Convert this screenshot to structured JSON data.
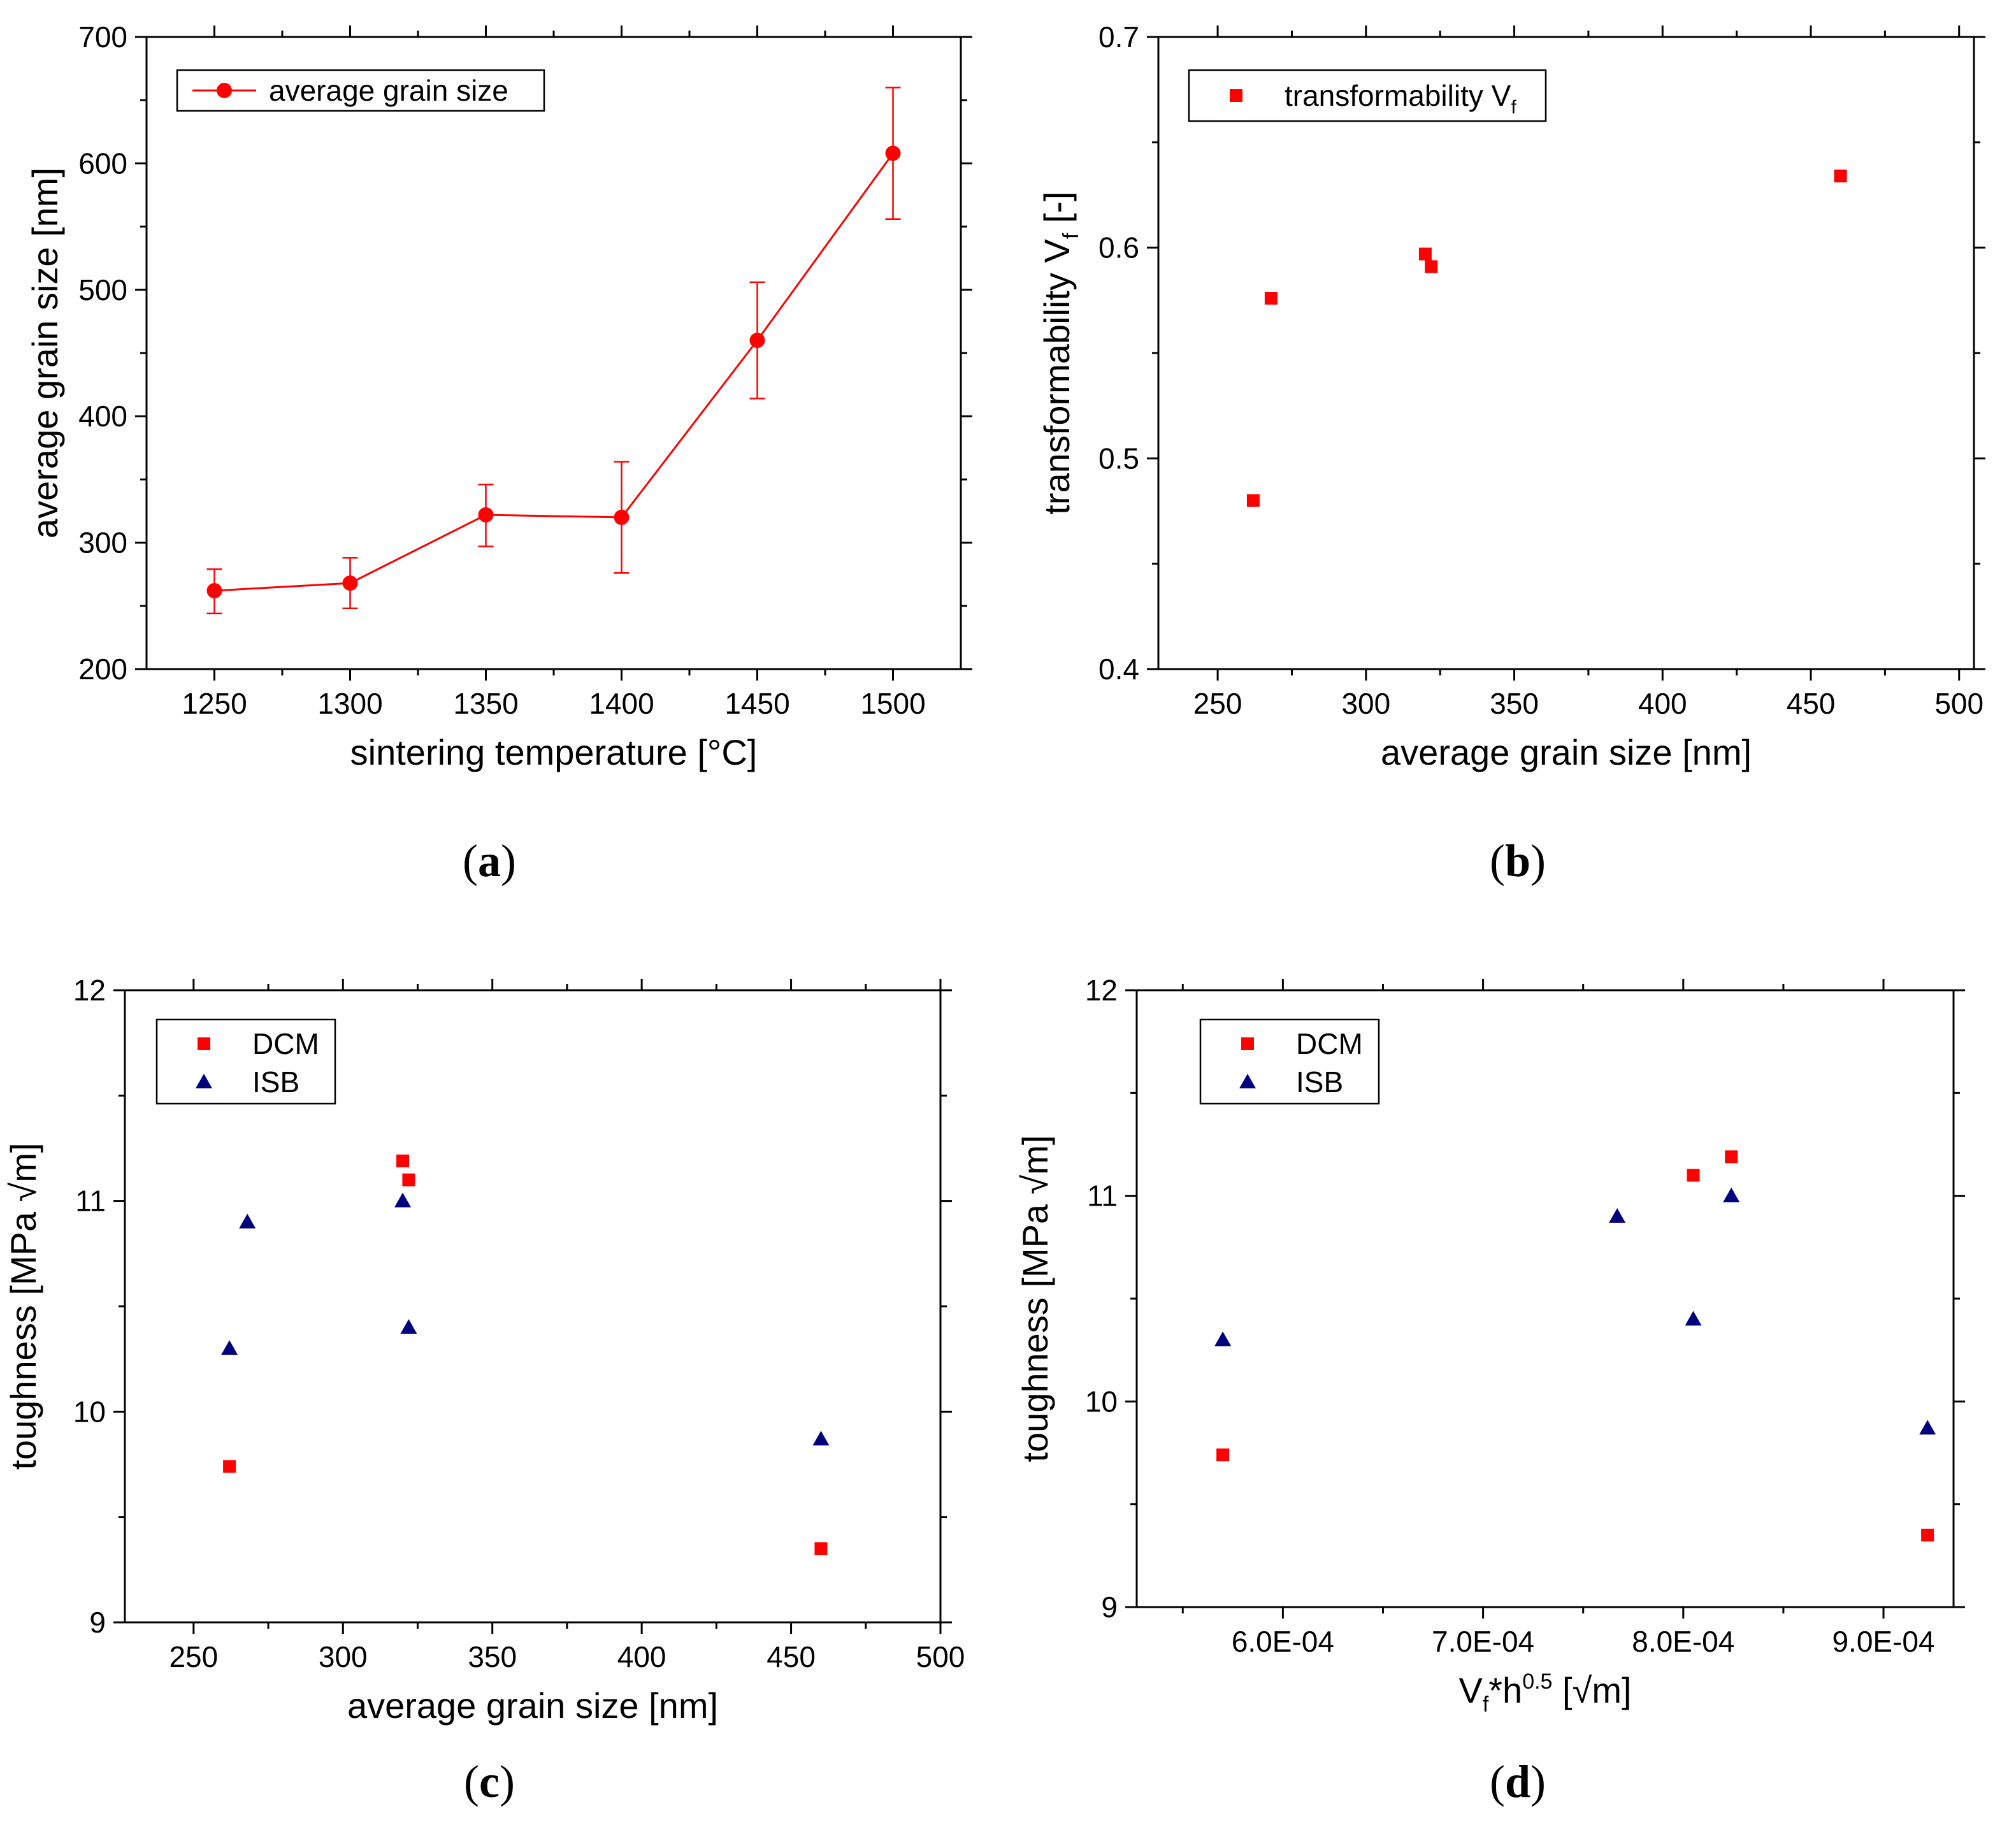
{
  "colors": {
    "dcm": "#ff0000",
    "isb": "#00007f",
    "axis": "#000000"
  },
  "chart_data": [
    {
      "id": "a",
      "type": "line",
      "panel_label": "a",
      "title": "",
      "xlabel": "sintering temperature [°C]",
      "ylabel": "average grain size [nm]",
      "xlim": [
        1225,
        1525
      ],
      "ylim": [
        200,
        700
      ],
      "xticks": [
        1250,
        1300,
        1350,
        1400,
        1450,
        1500
      ],
      "xtick_labels": [
        "1250",
        "1300",
        "1350",
        "1400",
        "1450",
        "1500"
      ],
      "yticks": [
        200,
        300,
        400,
        500,
        600,
        700
      ],
      "ytick_labels": [
        "200",
        "300",
        "400",
        "500",
        "600",
        "700"
      ],
      "legend_position": "top-left",
      "series": [
        {
          "name": "average grain size",
          "marker": "circle",
          "color": "#ff0000",
          "line": true,
          "x": [
            1250,
            1300,
            1350,
            1400,
            1450,
            1500
          ],
          "y": [
            262,
            268,
            322,
            320,
            460,
            608
          ],
          "err_low": [
            244,
            248,
            297,
            276,
            414,
            556
          ],
          "err_high": [
            279,
            288,
            346,
            364,
            506,
            660
          ]
        }
      ]
    },
    {
      "id": "b",
      "type": "scatter",
      "panel_label": "b",
      "title": "",
      "xlabel": "average grain size [nm]",
      "ylabel_main": "transformability V",
      "ylabel_sub": "f",
      "ylabel_tail": " [-]",
      "xlim": [
        230,
        505
      ],
      "ylim": [
        0.4,
        0.7
      ],
      "xticks": [
        250,
        300,
        350,
        400,
        450,
        500
      ],
      "xtick_labels": [
        "250",
        "300",
        "350",
        "400",
        "450",
        "500"
      ],
      "yticks": [
        0.4,
        0.5,
        0.6,
        0.7
      ],
      "ytick_labels": [
        "0.4",
        "0.5",
        "0.6",
        "0.7"
      ],
      "legend_position": "top-left",
      "legend_main": "transformability V",
      "legend_sub": "f",
      "series": [
        {
          "name": "transformability Vf",
          "marker": "square",
          "color": "#ff0000",
          "x": [
            262,
            268,
            320,
            322,
            460
          ],
          "y": [
            0.48,
            0.576,
            0.597,
            0.591,
            0.634
          ]
        }
      ]
    },
    {
      "id": "c",
      "type": "scatter",
      "panel_label": "c",
      "title": "",
      "xlabel": "average grain size [nm]",
      "ylabel": "toughness [MPa √m]",
      "xlim": [
        227,
        500
      ],
      "ylim": [
        9,
        12
      ],
      "xticks": [
        250,
        300,
        350,
        400,
        450,
        500
      ],
      "xtick_labels": [
        "250",
        "300",
        "350",
        "400",
        "450",
        "500"
      ],
      "yticks": [
        9,
        10,
        11,
        12
      ],
      "ytick_labels": [
        "9",
        "10",
        "11",
        "12"
      ],
      "legend_position": "top-left",
      "series": [
        {
          "name": "DCM",
          "marker": "square",
          "color": "#ff0000",
          "x": [
            262,
            320,
            322,
            460
          ],
          "y": [
            9.74,
            11.19,
            11.1,
            9.35
          ]
        },
        {
          "name": "ISB",
          "marker": "triangle",
          "color": "#00007f",
          "x": [
            262,
            268,
            320,
            322,
            460
          ],
          "y": [
            10.3,
            10.9,
            11.0,
            10.4,
            9.87
          ]
        }
      ]
    },
    {
      "id": "d",
      "type": "scatter",
      "panel_label": "d",
      "title": "",
      "xlabel_pre": "V",
      "xlabel_sub": "f",
      "xlabel_mid": "*h",
      "xlabel_sup": "0.5",
      "xlabel_tail": " [√m]",
      "ylabel": "toughness [MPa √m]",
      "xlim": [
        0.000527,
        0.000935
      ],
      "ylim": [
        9,
        12
      ],
      "xticks": [
        0.0006,
        0.0007,
        0.0008,
        0.0009
      ],
      "xtick_labels": [
        "6.0E-04",
        "7.0E-04",
        "8.0E-04",
        "9.0E-04"
      ],
      "yticks": [
        9,
        10,
        11,
        12
      ],
      "ytick_labels": [
        "9",
        "10",
        "11",
        "12"
      ],
      "legend_position": "top-left",
      "series": [
        {
          "name": "DCM",
          "marker": "square",
          "color": "#ff0000",
          "x": [
            0.00057,
            0.000805,
            0.000824,
            0.000922
          ],
          "y": [
            9.74,
            11.1,
            11.19,
            9.35
          ]
        },
        {
          "name": "ISB",
          "marker": "triangle",
          "color": "#00007f",
          "x": [
            0.00057,
            0.000767,
            0.000805,
            0.000824,
            0.000922
          ],
          "y": [
            10.3,
            10.9,
            10.4,
            11.0,
            9.87
          ]
        }
      ]
    }
  ]
}
